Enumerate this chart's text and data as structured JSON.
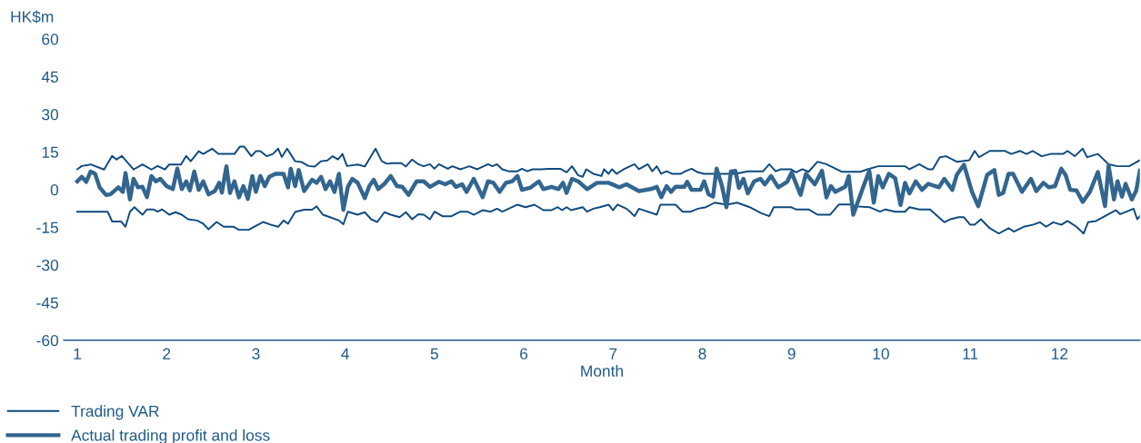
{
  "chart_data": {
    "type": "line",
    "ylabel": "HK$m",
    "xlabel": "Month",
    "xlim": [
      0.85,
      12.9
    ],
    "xticks": [
      1,
      2,
      3,
      4,
      5,
      6,
      7,
      8,
      9,
      10,
      11,
      12
    ],
    "ylim": [
      -60,
      60
    ],
    "yticks": [
      -60,
      -45,
      -30,
      -15,
      0,
      15,
      30,
      45,
      60
    ],
    "grid": false,
    "legend": "bottom",
    "marker": "none",
    "line_style": "solid",
    "series": [
      {
        "name": "Trading VAR",
        "color": "#0e4a7e",
        "x": [
          1.0,
          1.05,
          1.15,
          1.3,
          1.39,
          1.44,
          1.5,
          1.63,
          1.73,
          1.83,
          1.9,
          1.98,
          2.03,
          2.16,
          2.22,
          2.27,
          2.36,
          2.41,
          2.51,
          2.58,
          2.76,
          2.82,
          2.87,
          2.95,
          3.0,
          3.05,
          3.12,
          3.19,
          3.25,
          3.29,
          3.35,
          3.44,
          3.51,
          3.59,
          3.66,
          3.73,
          3.8,
          3.86,
          3.92,
          3.97,
          4.02,
          4.14,
          4.22,
          4.34,
          4.41,
          4.47,
          4.53,
          4.63,
          4.68,
          4.75,
          4.82,
          4.88,
          4.95,
          5.0,
          5.05,
          5.15,
          5.2,
          5.29,
          5.39,
          5.48,
          5.6,
          5.65,
          5.7,
          5.76,
          5.83,
          5.93,
          5.98,
          6.04,
          6.1,
          6.2,
          6.27,
          6.41,
          6.48,
          6.54,
          6.61,
          6.66,
          6.7,
          6.78,
          6.87,
          6.9,
          6.95,
          6.99,
          7.04,
          7.12,
          7.24,
          7.29,
          7.39,
          7.44,
          7.49,
          7.54,
          7.6,
          7.66,
          7.76,
          7.81,
          7.88,
          7.95,
          8.02,
          8.2,
          8.37,
          8.51,
          8.68,
          8.75,
          8.82,
          8.88,
          8.99,
          9.05,
          9.12,
          9.19,
          9.29,
          9.39,
          9.56,
          9.77,
          9.85,
          9.97,
          10.27,
          10.32,
          10.43,
          10.53,
          10.58,
          10.66,
          10.73,
          10.85,
          10.99,
          11.05,
          11.1,
          11.22,
          11.39,
          11.46,
          11.56,
          11.63,
          11.7,
          11.8,
          11.9,
          12.04,
          12.09,
          12.17,
          12.26,
          12.31,
          12.43,
          12.55,
          12.65,
          12.78,
          12.9
        ],
        "values": [
          8.1,
          9.4,
          10,
          8,
          13.4,
          12,
          13.4,
          8,
          10,
          8,
          9.4,
          8,
          10,
          10,
          13.4,
          11.3,
          15.3,
          14.2,
          16.3,
          14.2,
          14.2,
          17.1,
          17.1,
          13.3,
          15.3,
          15.3,
          13.3,
          14.2,
          16.3,
          13,
          16.3,
          11.3,
          11,
          9.4,
          9.2,
          11.3,
          11.6,
          13.3,
          12,
          14.2,
          9.4,
          10,
          9.2,
          16.3,
          11.3,
          10.3,
          10.5,
          10.5,
          9.2,
          12,
          10.1,
          9.3,
          10.1,
          8.3,
          10.1,
          8.3,
          9.3,
          8.1,
          9.3,
          8.1,
          10.1,
          9.3,
          10.1,
          8.1,
          7.3,
          7.3,
          8.3,
          7.3,
          8.1,
          8.1,
          8.3,
          8.3,
          6.9,
          9.3,
          5.7,
          5.1,
          8.1,
          6.3,
          5.4,
          8.1,
          6.3,
          8.1,
          6.3,
          8.1,
          10.1,
          8.1,
          10.1,
          7.3,
          9.3,
          6.3,
          7.3,
          6.3,
          6.3,
          7.3,
          8.3,
          6.9,
          6.3,
          6.3,
          6.3,
          7.3,
          7.3,
          10.1,
          7.3,
          8.1,
          8.1,
          6.9,
          8.1,
          7.1,
          11.1,
          10.1,
          7.1,
          7.1,
          8.1,
          9.3,
          9.3,
          8.1,
          10.1,
          8.1,
          8.1,
          12.9,
          13.3,
          11.1,
          11.7,
          15.4,
          12.9,
          15.4,
          15.4,
          14.2,
          15.4,
          14.2,
          15.4,
          13.3,
          14.2,
          14.2,
          15.4,
          13.3,
          16.3,
          12.9,
          14.2,
          10.1,
          9.3,
          9.3,
          11.7
        ]
      },
      {
        "color": "#0e4a7e",
        "x": [
          1.0,
          1.34,
          1.39,
          1.49,
          1.54,
          1.59,
          1.64,
          1.73,
          1.78,
          1.85,
          1.9,
          1.95,
          2.03,
          2.1,
          2.17,
          2.24,
          2.34,
          2.41,
          2.47,
          2.56,
          2.64,
          2.75,
          2.81,
          2.92,
          2.98,
          3.08,
          3.17,
          3.25,
          3.31,
          3.36,
          3.44,
          3.54,
          3.63,
          3.68,
          3.75,
          3.83,
          3.93,
          3.98,
          4.03,
          4.14,
          4.22,
          4.29,
          4.36,
          4.44,
          4.51,
          4.61,
          4.68,
          4.75,
          4.82,
          4.88,
          4.95,
          5.0,
          5.09,
          5.19,
          5.29,
          5.37,
          5.44,
          5.54,
          5.63,
          5.7,
          5.76,
          5.93,
          6.02,
          6.12,
          6.22,
          6.31,
          6.38,
          6.43,
          6.48,
          6.53,
          6.66,
          6.71,
          6.78,
          6.85,
          6.95,
          7.0,
          7.05,
          7.15,
          7.19,
          7.24,
          7.29,
          7.49,
          7.53,
          7.7,
          7.78,
          7.87,
          7.95,
          8.04,
          8.14,
          8.27,
          8.39,
          8.53,
          8.66,
          8.75,
          8.8,
          8.99,
          9.05,
          9.19,
          9.29,
          9.43,
          9.53,
          9.66,
          9.73,
          9.87,
          9.99,
          10.05,
          10.16,
          10.27,
          10.32,
          10.43,
          10.55,
          10.71,
          10.78,
          10.87,
          10.93,
          11.0,
          11.05,
          11.12,
          11.22,
          11.32,
          11.43,
          11.49,
          11.6,
          11.7,
          11.78,
          11.85,
          11.93,
          12.02,
          12.09,
          12.19,
          12.27,
          12.32,
          12.41,
          12.55,
          12.63,
          12.68,
          12.75,
          12.83,
          12.87,
          12.9
        ],
        "values": [
          -8.8,
          -8.8,
          -12.7,
          -12.7,
          -14.8,
          -8.8,
          -7,
          -10,
          -7.9,
          -7.9,
          -8.8,
          -7.9,
          -10,
          -9,
          -10,
          -11.8,
          -12.3,
          -13.6,
          -15.8,
          -12.9,
          -14.8,
          -14.8,
          -16,
          -16,
          -14.8,
          -12.9,
          -14,
          -14.8,
          -12.3,
          -13.6,
          -8.9,
          -8,
          -8,
          -6.7,
          -10,
          -11,
          -12.3,
          -13.8,
          -8.8,
          -10,
          -9,
          -11.8,
          -12.9,
          -9,
          -10,
          -11,
          -9,
          -11.8,
          -9.8,
          -10,
          -11.8,
          -8.8,
          -10.6,
          -10.6,
          -8.8,
          -8.8,
          -10,
          -8.2,
          -8.8,
          -7.6,
          -8.8,
          -6,
          -7,
          -6,
          -8.2,
          -8.2,
          -7,
          -8.2,
          -7,
          -8.2,
          -7,
          -8.8,
          -7.6,
          -7,
          -6,
          -8.2,
          -6,
          -7.6,
          -8.8,
          -10.6,
          -7.6,
          -10,
          -6,
          -6,
          -8.8,
          -8.8,
          -7.6,
          -7,
          -5.2,
          -6,
          -5.2,
          -7,
          -9.4,
          -10.6,
          -7,
          -7,
          -7.9,
          -7.9,
          -10,
          -10,
          -5.9,
          -5.9,
          -6.7,
          -7,
          -8.8,
          -7.9,
          -8.8,
          -8.8,
          -7,
          -7.9,
          -7.9,
          -13,
          -11.8,
          -11,
          -11,
          -14,
          -14,
          -11.8,
          -15.4,
          -17.5,
          -15.4,
          -16.7,
          -14.8,
          -14,
          -13,
          -14.8,
          -13,
          -14,
          -12.5,
          -14.8,
          -17.5,
          -13,
          -12.5,
          -9.8,
          -8.2,
          -9.8,
          -8.8,
          -7.6,
          -11.8,
          -10.6
        ]
      },
      {
        "name": "Actual trading profit and loss",
        "color": "#33668f",
        "x": [
          1.0,
          1.05,
          1.1,
          1.15,
          1.2,
          1.25,
          1.32,
          1.37,
          1.46,
          1.51,
          1.54,
          1.59,
          1.63,
          1.68,
          1.73,
          1.78,
          1.83,
          1.88,
          1.93,
          2.0,
          2.07,
          2.12,
          2.17,
          2.22,
          2.26,
          2.31,
          2.36,
          2.41,
          2.47,
          2.54,
          2.59,
          2.62,
          2.67,
          2.71,
          2.76,
          2.81,
          2.86,
          2.91,
          2.96,
          3.0,
          3.05,
          3.1,
          3.15,
          3.22,
          3.31,
          3.36,
          3.39,
          3.44,
          3.48,
          3.54,
          3.63,
          3.68,
          3.73,
          3.78,
          3.83,
          3.88,
          3.93,
          3.98,
          4.03,
          4.08,
          4.14,
          4.22,
          4.27,
          4.32,
          4.37,
          4.44,
          4.51,
          4.58,
          4.64,
          4.71,
          4.8,
          4.88,
          4.95,
          5.05,
          5.12,
          5.19,
          5.24,
          5.31,
          5.36,
          5.44,
          5.54,
          5.6,
          5.66,
          5.73,
          5.8,
          5.87,
          5.93,
          5.98,
          6.07,
          6.17,
          6.22,
          6.31,
          6.39,
          6.44,
          6.48,
          6.54,
          6.61,
          6.71,
          6.82,
          6.95,
          7.07,
          7.15,
          7.29,
          7.42,
          7.49,
          7.54,
          7.6,
          7.65,
          7.7,
          7.8,
          7.83,
          7.88,
          7.98,
          8.02,
          8.07,
          8.12,
          8.16,
          8.22,
          8.27,
          8.32,
          8.37,
          8.41,
          8.46,
          8.51,
          8.58,
          8.65,
          8.7,
          8.77,
          8.85,
          8.95,
          9.0,
          9.1,
          9.16,
          9.26,
          9.34,
          9.39,
          9.44,
          9.49,
          9.6,
          9.64,
          9.69,
          9.8,
          9.87,
          9.92,
          9.97,
          10.02,
          10.09,
          10.16,
          10.22,
          10.27,
          10.32,
          10.39,
          10.46,
          10.53,
          10.65,
          10.71,
          10.8,
          10.85,
          10.93,
          11.02,
          11.09,
          11.19,
          11.27,
          11.32,
          11.37,
          11.43,
          11.48,
          11.58,
          11.68,
          11.74,
          11.82,
          11.88,
          11.95,
          12.02,
          12.07,
          12.12,
          12.19,
          12.26,
          12.34,
          12.43,
          12.51,
          12.55,
          12.61,
          12.65,
          12.7,
          12.74,
          12.81,
          12.86,
          12.9
        ],
        "values": [
          3.3,
          5.1,
          3.1,
          7.2,
          6.3,
          0.9,
          -2.1,
          -1.9,
          0.9,
          -0.9,
          6.6,
          -3.9,
          4.3,
          0.9,
          1.1,
          -3.0,
          5.4,
          3.3,
          4.3,
          1.4,
          0.2,
          8.4,
          0.2,
          3.3,
          -0.3,
          7.2,
          -0.1,
          3.3,
          -1.9,
          -0.6,
          2.7,
          -1.2,
          9.3,
          -1.3,
          3.3,
          -3.1,
          1.4,
          -3.7,
          5.4,
          -0.9,
          5.4,
          1.4,
          5.1,
          6.3,
          6.3,
          0.9,
          8.3,
          1.4,
          7.8,
          -0.6,
          3.9,
          2.7,
          5.1,
          0.2,
          3.3,
          -0.9,
          6.3,
          -8,
          1.1,
          4.3,
          2.7,
          -3.4,
          1.4,
          3.9,
          0.2,
          2.3,
          5.4,
          1.4,
          1.1,
          -2.1,
          3.3,
          3.3,
          1.1,
          3.1,
          2.1,
          3.3,
          1.1,
          2.1,
          -0.9,
          4.3,
          -3.0,
          3.3,
          2.7,
          -0.9,
          2.7,
          3.3,
          5.4,
          -0.1,
          0.7,
          3.3,
          0.2,
          1.1,
          0.2,
          2.7,
          -1.3,
          4.3,
          3.3,
          0.2,
          2.7,
          2.7,
          0.9,
          2.1,
          -0.6,
          0.2,
          1.1,
          -3.0,
          1.4,
          -0.9,
          1.1,
          1.1,
          3.1,
          -0.1,
          -0.1,
          3.3,
          -1.9,
          -2.8,
          8.4,
          1.4,
          -7,
          7.2,
          7.5,
          0.7,
          4.3,
          -1.5,
          3.3,
          4.3,
          2.1,
          5.4,
          0.9,
          3.1,
          6.8,
          -2.1,
          6.3,
          2.1,
          7.5,
          -3.1,
          1.4,
          -0.9,
          1.1,
          5.4,
          -10,
          0.9,
          7.5,
          -5.2,
          5.4,
          0.9,
          6.3,
          4.5,
          -6.1,
          2.7,
          -1.5,
          3.3,
          -0.1,
          2.3,
          0.9,
          4.3,
          -0.1,
          5.9,
          9.9,
          -0.9,
          -6.6,
          5.9,
          7.8,
          -2.1,
          -1.3,
          6.3,
          6.3,
          -0.9,
          4.3,
          -0.6,
          2.7,
          0.9,
          1.4,
          8.3,
          5.7,
          -0.1,
          -0.3,
          -4.9,
          -0.9,
          7.0,
          -6.6,
          9.6,
          -3.9,
          3.3,
          -2.8,
          2.3,
          -3.9,
          -0.3,
          7.5
        ]
      }
    ]
  }
}
